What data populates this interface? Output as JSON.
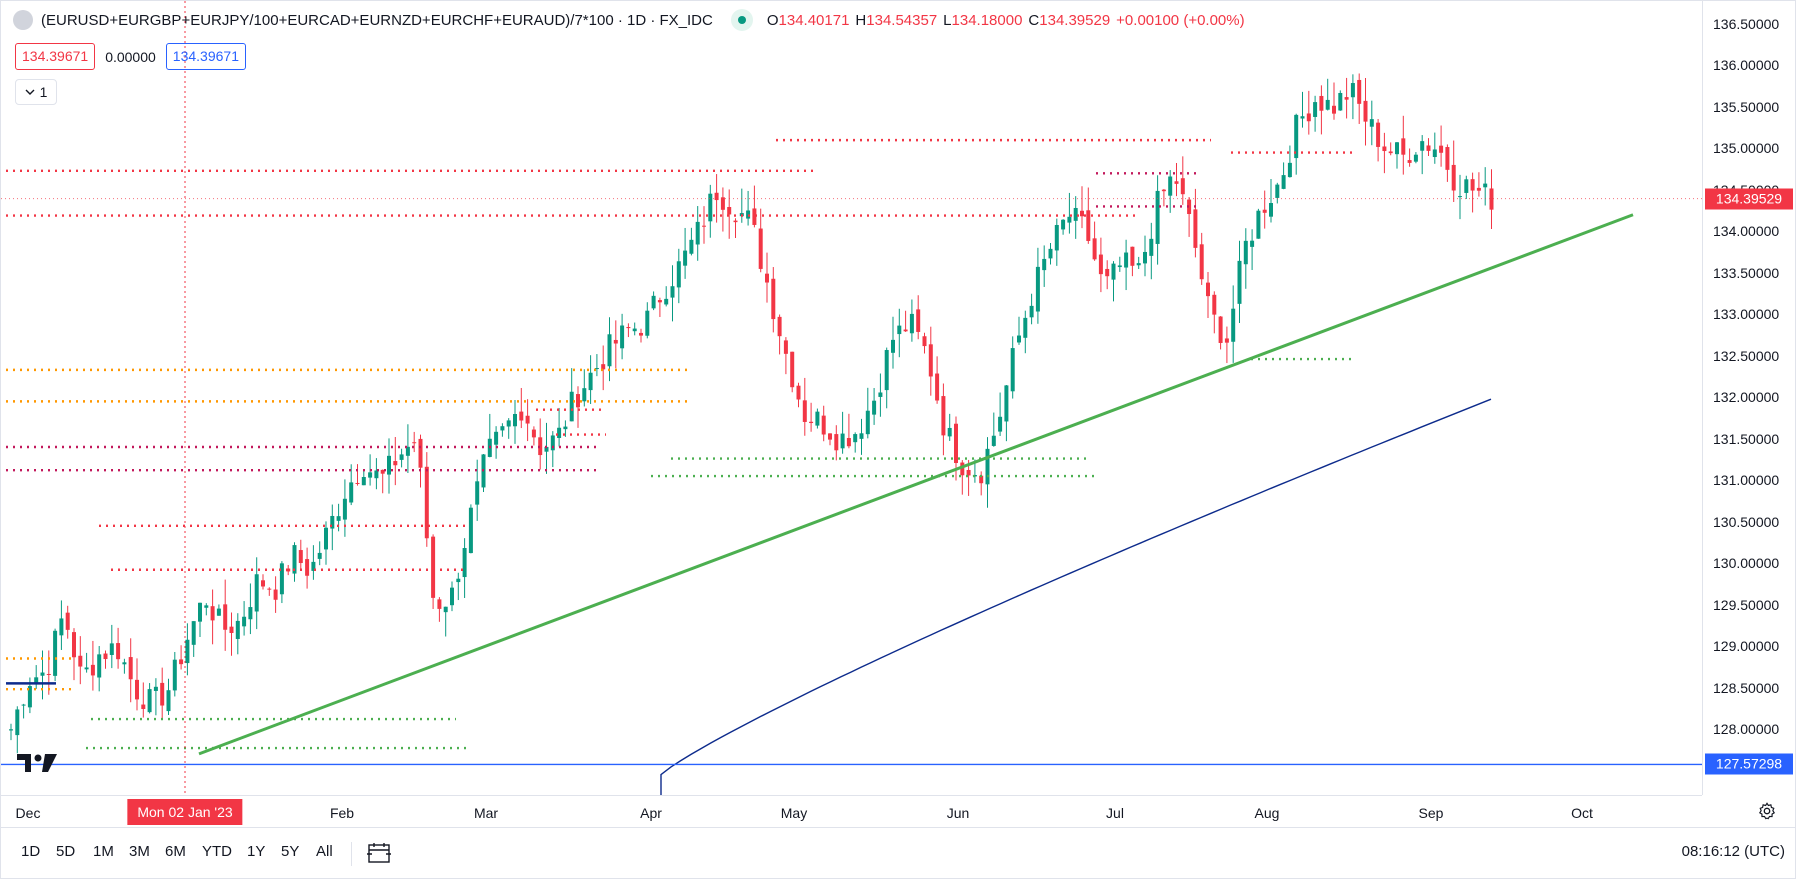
{
  "legend": {
    "symbol": "(EURUSD+EURGBP+EURJPY/100+EURCAD+EURNZD+EURCHF+EURAUD)/7*100 · 1D · FX_IDC",
    "open_label": "O",
    "open": "134.40171",
    "high_label": "H",
    "high": "134.54357",
    "low_label": "L",
    "low": "134.18000",
    "close_label": "C",
    "close": "134.39529",
    "change": "+0.00100 (+0.00%)"
  },
  "values": {
    "v1": "134.39671",
    "v2": "0.00000",
    "v3": "134.39671"
  },
  "indicators_toggle": "1",
  "y_axis": {
    "ticks": [
      "136.50000",
      "136.00000",
      "135.50000",
      "135.00000",
      "134.50000",
      "134.00000",
      "133.50000",
      "133.00000",
      "132.50000",
      "132.00000",
      "131.50000",
      "131.00000",
      "130.50000",
      "130.00000",
      "129.50000",
      "129.00000",
      "128.50000",
      "128.00000"
    ],
    "last_price": "134.39529",
    "hline_price": "127.57298"
  },
  "x_axis": {
    "ticks": [
      "Dec",
      "Feb",
      "Mar",
      "Apr",
      "May",
      "Jun",
      "Jul",
      "Aug",
      "Sep",
      "Oct"
    ],
    "cursor_label": "Mon 02 Jan '23"
  },
  "bottom_bar": {
    "ranges": [
      "1D",
      "5D",
      "1M",
      "3M",
      "6M",
      "YTD",
      "1Y",
      "5Y",
      "All"
    ],
    "clock": "08:16:12 (UTC)"
  },
  "colors": {
    "up": "#089981",
    "down": "#f23645",
    "trend": "#4caf50",
    "ma": "#0d2b8c",
    "hline": "#2962ff",
    "orange": "#ff9800"
  },
  "icons": [
    "series-logo-icon",
    "live-dot-icon",
    "chevron-down-icon",
    "calendar-range-icon",
    "settings-gear-icon",
    "tradingview-logo-icon"
  ],
  "chart_data": {
    "type": "candlestick",
    "title": "(EURUSD+EURGBP+EURJPY/100+EURCAD+EURNZD+EURCHF+EURAUD)/7*100 · 1D · FX_IDC",
    "ylim": [
      127.5,
      136.7
    ],
    "path": [
      128.0,
      128.6,
      128.7,
      129.4,
      128.6,
      128.9,
      129.0,
      128.5,
      128.3,
      128.5,
      129.1,
      129.6,
      129.2,
      129.3,
      129.8,
      129.7,
      130.1,
      129.9,
      130.4,
      130.9,
      131.2,
      131.0,
      131.3,
      131.5,
      129.5,
      129.6,
      130.5,
      131.3,
      131.6,
      131.9,
      131.4,
      131.5,
      132.0,
      132.3,
      132.6,
      132.8,
      132.9,
      133.3,
      133.6,
      134.0,
      134.5,
      134.3,
      134.1,
      133.3,
      132.5,
      131.8,
      131.7,
      131.5,
      131.6,
      132.0,
      132.7,
      132.9,
      132.5,
      131.6,
      131.2,
      131.1,
      131.7,
      132.6,
      133.3,
      133.8,
      134.2,
      134.0,
      133.3,
      133.6,
      133.5,
      134.3,
      134.7,
      134.0,
      133.0,
      132.7,
      133.8,
      134.3,
      134.6,
      135.3,
      135.6,
      135.5,
      135.7,
      135.3,
      135.0,
      134.9,
      135.1,
      135.0,
      134.6,
      134.5,
      134.4
    ],
    "ma_200": [
      [
        127.5,
        127.5
      ],
      [
        128.3,
        128.1
      ],
      [
        129.6,
        129.5
      ],
      [
        131.0,
        131.3
      ],
      [
        131.9,
        132.0
      ]
    ],
    "trendline": [
      [
        127.7,
        1
      ],
      [
        134.2,
        2
      ]
    ],
    "horizontal_line": 127.57298,
    "last_price": 134.39529,
    "resistance_levels_red": [
      134.73,
      134.19,
      131.4,
      131.12,
      130.45,
      129.92
    ],
    "resistance_levels_orange": [
      132.33,
      131.95,
      128.85,
      128.48
    ],
    "support_levels_green": [
      128.12,
      127.77,
      131.26,
      131.05,
      132.46
    ],
    "x_labels": [
      "Dec",
      "Feb",
      "Mar",
      "Apr",
      "May",
      "Jun",
      "Jul",
      "Aug",
      "Sep",
      "Oct"
    ]
  }
}
